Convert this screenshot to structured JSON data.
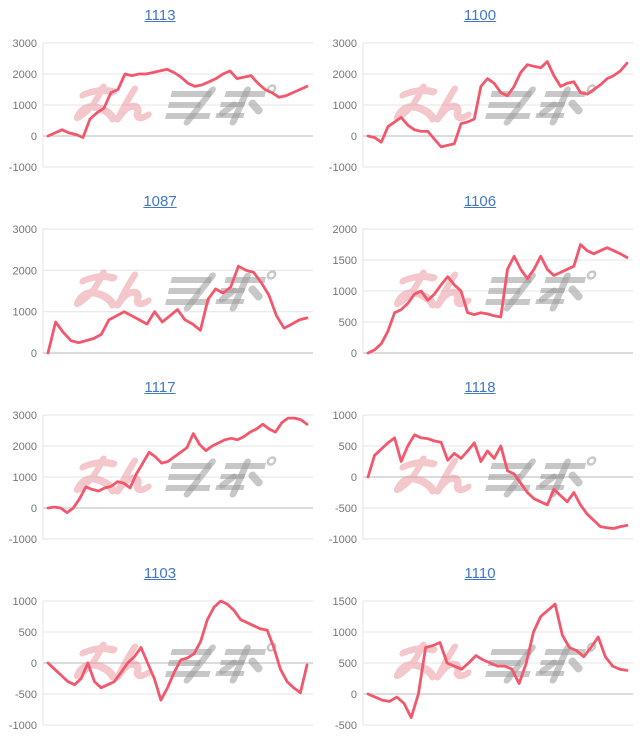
{
  "watermark": {
    "text": "みんレポ",
    "pink_color": "#e8909a",
    "gray_color": "#9a9a9a"
  },
  "colors": {
    "line": "#f3576c",
    "grid": "#e4e4e4",
    "zero_line": "#b8b8b8",
    "tick_label": "#757575",
    "title_link": "#4377c9"
  },
  "chart_data": [
    {
      "type": "line",
      "title": "1113",
      "xlabel": "",
      "ylabel": "",
      "ylim": [
        -1000,
        3000
      ],
      "yticks": [
        3000,
        2000,
        1000,
        0,
        -1000
      ],
      "values": [
        0,
        100,
        200,
        100,
        50,
        -50,
        550,
        750,
        900,
        1400,
        1500,
        2000,
        1950,
        2000,
        2000,
        2050,
        2100,
        2150,
        2050,
        1900,
        1700,
        1600,
        1650,
        1750,
        1850,
        2000,
        2100,
        1850,
        1900,
        1950,
        1700,
        1500,
        1400,
        1250,
        1300,
        1400,
        1500,
        1600
      ]
    },
    {
      "type": "line",
      "title": "1100",
      "xlabel": "",
      "ylabel": "",
      "ylim": [
        -1000,
        3000
      ],
      "yticks": [
        3000,
        2000,
        1000,
        0,
        -1000
      ],
      "values": [
        0,
        -50,
        -200,
        300,
        450,
        600,
        350,
        200,
        150,
        150,
        -100,
        -350,
        -300,
        -250,
        400,
        450,
        550,
        1600,
        1850,
        1700,
        1400,
        1300,
        1600,
        2050,
        2300,
        2250,
        2200,
        2400,
        1950,
        1600,
        1700,
        1750,
        1400,
        1350,
        1500,
        1650,
        1850,
        1950,
        2100,
        2350
      ]
    },
    {
      "type": "line",
      "title": "1087",
      "xlabel": "",
      "ylabel": "",
      "ylim": [
        0,
        3000
      ],
      "yticks": [
        3000,
        2000,
        1000,
        0
      ],
      "values": [
        0,
        750,
        500,
        300,
        250,
        300,
        350,
        450,
        800,
        900,
        1000,
        900,
        800,
        700,
        1000,
        750,
        900,
        1050,
        800,
        700,
        550,
        1300,
        1550,
        1450,
        1600,
        2100,
        2000,
        1950,
        1700,
        1400,
        900,
        600,
        700,
        800,
        850
      ]
    },
    {
      "type": "line",
      "title": "1106",
      "xlabel": "",
      "ylabel": "",
      "ylim": [
        0,
        2000
      ],
      "yticks": [
        2000,
        1500,
        1000,
        500,
        0
      ],
      "values": [
        0,
        50,
        150,
        350,
        650,
        700,
        800,
        950,
        1000,
        850,
        950,
        1100,
        1230,
        1100,
        1000,
        650,
        620,
        650,
        630,
        600,
        580,
        1350,
        1560,
        1350,
        1200,
        1350,
        1560,
        1350,
        1250,
        1300,
        1350,
        1400,
        1750,
        1650,
        1600,
        1650,
        1700,
        1650,
        1600,
        1540
      ]
    },
    {
      "type": "line",
      "title": "1117",
      "xlabel": "",
      "ylabel": "",
      "ylim": [
        -1000,
        3000
      ],
      "yticks": [
        3000,
        2000,
        1000,
        0,
        -1000
      ],
      "values": [
        0,
        30,
        0,
        -150,
        0,
        300,
        680,
        600,
        550,
        650,
        700,
        850,
        800,
        650,
        1100,
        1450,
        1800,
        1650,
        1450,
        1500,
        1650,
        1800,
        1950,
        2400,
        2050,
        1850,
        2000,
        2100,
        2200,
        2250,
        2200,
        2300,
        2450,
        2550,
        2700,
        2550,
        2450,
        2750,
        2900,
        2900,
        2850,
        2700
      ]
    },
    {
      "type": "line",
      "title": "1118",
      "xlabel": "",
      "ylabel": "",
      "ylim": [
        -1000,
        1000
      ],
      "yticks": [
        1000,
        500,
        0,
        -500,
        -1000
      ],
      "values": [
        0,
        350,
        450,
        550,
        630,
        250,
        500,
        680,
        630,
        620,
        580,
        560,
        270,
        380,
        300,
        420,
        550,
        250,
        420,
        300,
        500,
        100,
        50,
        -100,
        -250,
        -350,
        -400,
        -450,
        -200,
        -300,
        -400,
        -250,
        -450,
        -600,
        -700,
        -800,
        -820,
        -830,
        -800,
        -780
      ]
    },
    {
      "type": "line",
      "title": "1103",
      "xlabel": "",
      "ylabel": "",
      "ylim": [
        -1000,
        1000
      ],
      "yticks": [
        1000,
        500,
        0,
        -500,
        -1000
      ],
      "values": [
        0,
        -100,
        -200,
        -300,
        -350,
        -250,
        0,
        -300,
        -400,
        -350,
        -300,
        -150,
        0,
        100,
        250,
        0,
        -250,
        -600,
        -400,
        -150,
        50,
        80,
        150,
        350,
        700,
        900,
        1000,
        950,
        850,
        700,
        650,
        600,
        550,
        530,
        250,
        -100,
        -300,
        -400,
        -480,
        -30
      ]
    },
    {
      "type": "line",
      "title": "1110",
      "xlabel": "",
      "ylabel": "",
      "ylim": [
        -500,
        1500
      ],
      "yticks": [
        1500,
        1000,
        500,
        0,
        -500
      ],
      "values": [
        0,
        -50,
        -100,
        -120,
        -50,
        -150,
        -380,
        0,
        750,
        780,
        830,
        500,
        450,
        400,
        500,
        620,
        550,
        500,
        450,
        450,
        400,
        170,
        500,
        1000,
        1250,
        1350,
        1450,
        950,
        750,
        700,
        600,
        750,
        920,
        600,
        450,
        400,
        380
      ]
    }
  ]
}
